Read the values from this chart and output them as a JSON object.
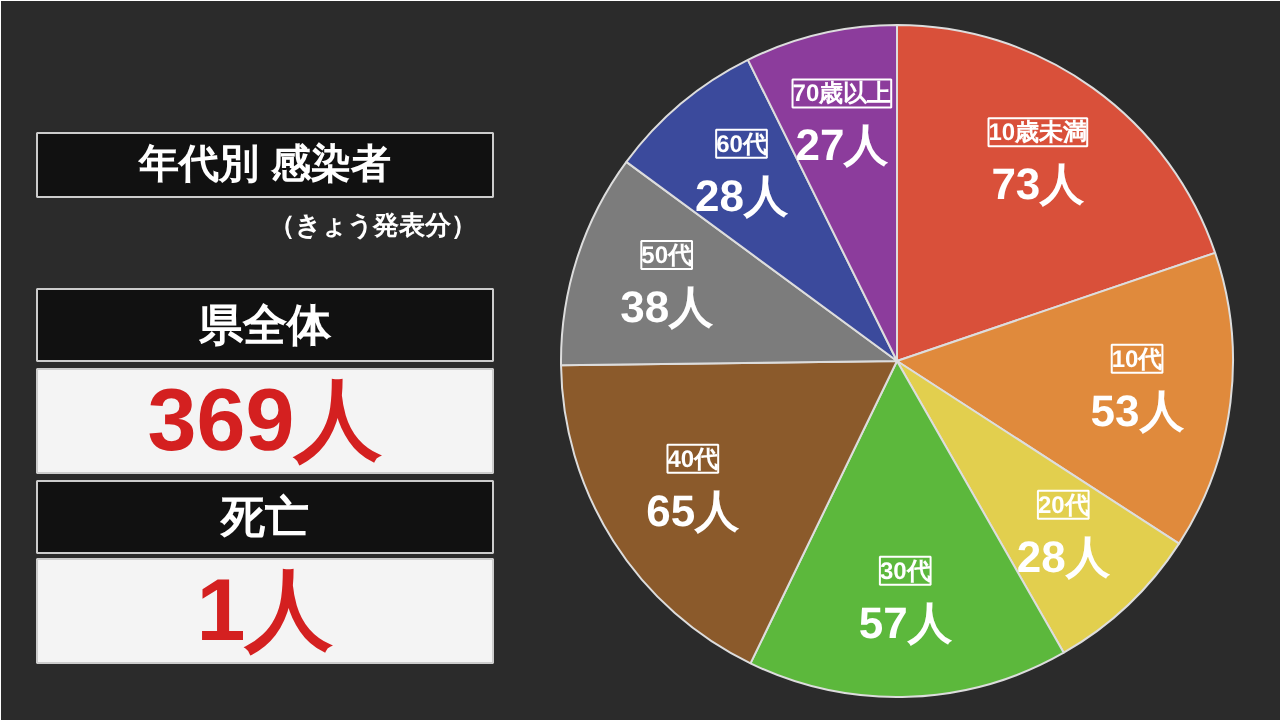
{
  "chart_data": {
    "type": "pie",
    "title": "年代別 感染者",
    "subtitle": "（きょう発表分）",
    "annotations": [
      "県全体",
      "369人",
      "死亡",
      "1人"
    ],
    "categories": [
      "10歳未満",
      "10代",
      "20代",
      "30代",
      "40代",
      "50代",
      "60代",
      "70歳以上"
    ],
    "values": [
      73,
      53,
      28,
      57,
      65,
      38,
      28,
      27
    ],
    "value_labels": [
      "73人",
      "53人",
      "28人",
      "57人",
      "65人",
      "38人",
      "28人",
      "27人"
    ],
    "colors": [
      "#d9503a",
      "#e08a3c",
      "#e2cf4e",
      "#5cb83c",
      "#8b5a2b",
      "#7c7c7c",
      "#3b4a9c",
      "#8c3c9c"
    ]
  }
}
